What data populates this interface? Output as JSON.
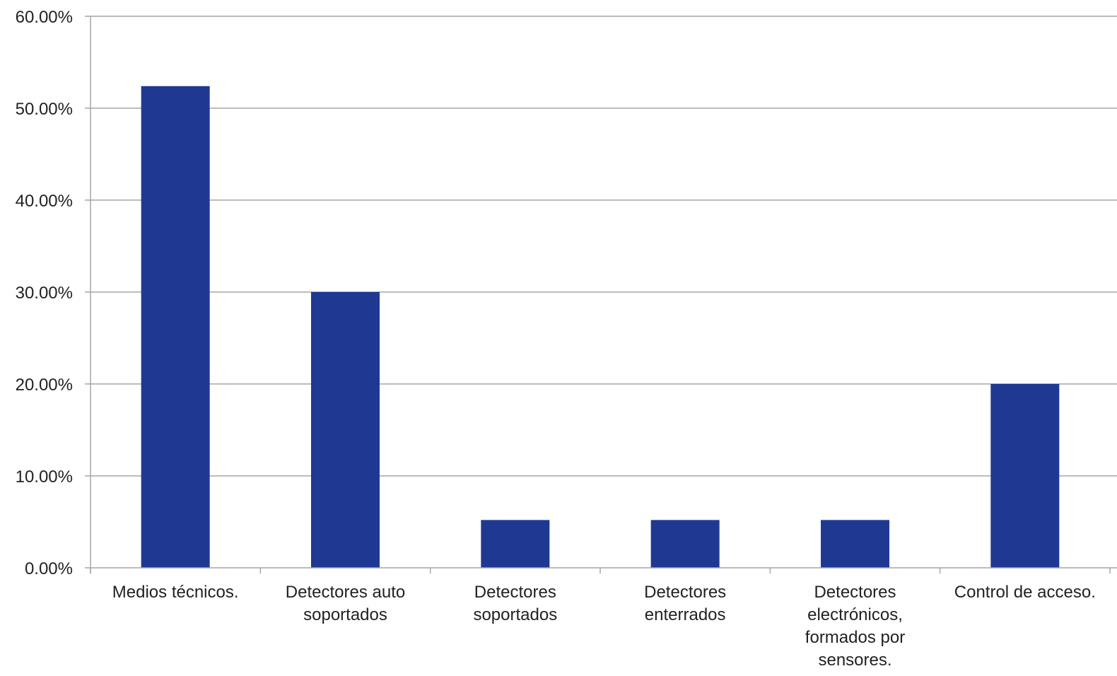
{
  "chart_data": {
    "type": "bar",
    "title": "",
    "xlabel": "",
    "ylabel": "",
    "categories": [
      [
        "Medios técnicos."
      ],
      [
        "Detectores auto",
        "soportados"
      ],
      [
        "Detectores",
        "soportados"
      ],
      [
        "Detectores",
        "enterrados"
      ],
      [
        "Detectores",
        "electrónicos,",
        "formados por",
        "sensores."
      ],
      [
        "Control de acceso."
      ]
    ],
    "values": [
      52.4,
      30.0,
      5.2,
      5.2,
      5.2,
      20.0
    ],
    "ylim": [
      0,
      60
    ],
    "yticks": [
      0,
      10,
      20,
      30,
      40,
      50,
      60
    ],
    "ytick_labels": [
      "0.00%",
      "10.00%",
      "20.00%",
      "30.00%",
      "40.00%",
      "50.00%",
      "60.00%"
    ],
    "grid": true,
    "legend": "none",
    "colors": {
      "bar": "#1F3993",
      "grid": "#A6A6A6",
      "axis": "#A6A6A6"
    }
  }
}
